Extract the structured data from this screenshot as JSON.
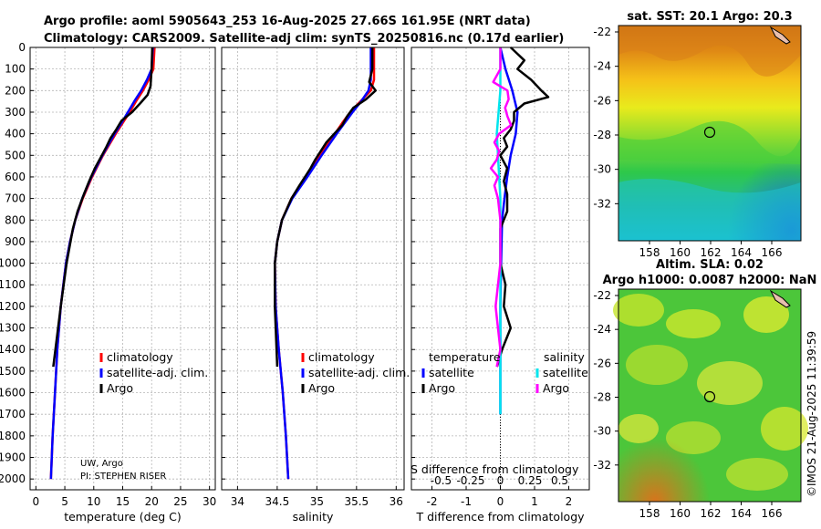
{
  "title": {
    "line1": "Argo profile: aoml 5905643_253 16-Aug-2025 27.66S 161.95E (NRT data)",
    "line2": "Climatology: CARS2009. Satellite-adj clim: synTS_20250816.nc (0.17d earlier)"
  },
  "colors": {
    "climatology": "#ff0000",
    "satellite": "#0000ff",
    "argo": "#000000",
    "sat_sal": "#00e5ee",
    "argo_sal": "#ff00ff"
  },
  "chart_data": [
    {
      "type": "line",
      "name": "temperature",
      "xlabel": "temperature (deg C)",
      "xlim": [
        -1,
        31
      ],
      "xticks": [
        0,
        5,
        10,
        15,
        20,
        25,
        30
      ],
      "xtick_labels": [
        "0",
        "5",
        "10",
        "15",
        "20",
        "25",
        "30"
      ],
      "ylim": [
        0,
        2050
      ],
      "yticks": [
        0,
        100,
        200,
        300,
        400,
        500,
        600,
        700,
        800,
        900,
        1000,
        1100,
        1200,
        1300,
        1400,
        1500,
        1600,
        1700,
        1800,
        1900,
        2000
      ],
      "ytick_labels": [
        "0",
        "100",
        "200",
        "300",
        "400",
        "500",
        "600",
        "700",
        "800",
        "900",
        "1000",
        "1100",
        "1200",
        "1300",
        "1400",
        "1500",
        "1600",
        "1700",
        "1800",
        "1900",
        "2000"
      ],
      "legend": [
        "climatology",
        "satellite-adj. clim.",
        "Argo"
      ],
      "annotation": [
        "UW, Argo",
        "PI: STEPHEN RISER"
      ],
      "series": [
        {
          "name": "climatology",
          "depth": [
            0,
            100,
            150,
            200,
            250,
            300,
            350,
            400,
            500,
            600,
            700,
            800,
            900,
            1000,
            1200,
            1400,
            1600,
            1800,
            2000
          ],
          "values": [
            20.5,
            20.3,
            19.5,
            18.5,
            17.3,
            16.2,
            15.0,
            13.8,
            11.6,
            9.7,
            8.1,
            6.8,
            5.9,
            5.2,
            4.3,
            3.7,
            3.3,
            2.9,
            2.6
          ]
        },
        {
          "name": "satellite-adj. clim.",
          "depth": [
            0,
            100,
            150,
            200,
            250,
            300,
            350,
            400,
            500,
            600,
            700,
            800,
            900,
            1000,
            1200,
            1400,
            1600,
            1800,
            2000
          ],
          "values": [
            20.2,
            20.0,
            19.2,
            18.2,
            17.0,
            15.9,
            14.8,
            13.6,
            11.5,
            9.6,
            8.0,
            6.8,
            5.9,
            5.2,
            4.3,
            3.7,
            3.3,
            2.9,
            2.6
          ]
        },
        {
          "name": "Argo",
          "depth": [
            0,
            100,
            180,
            220,
            260,
            300,
            340,
            380,
            420,
            460,
            500,
            560,
            620,
            680,
            760,
            840,
            1000,
            1200,
            1480
          ],
          "values": [
            20.1,
            20.0,
            19.8,
            19.3,
            18.0,
            16.6,
            14.8,
            13.9,
            12.9,
            12.2,
            11.4,
            10.2,
            9.2,
            8.3,
            7.2,
            6.4,
            5.3,
            4.3,
            3.0
          ]
        }
      ]
    },
    {
      "type": "line",
      "name": "salinity",
      "xlabel": "salinity",
      "xlim": [
        33.8,
        36.1
      ],
      "xticks": [
        34,
        34.5,
        35,
        35.5,
        36
      ],
      "xtick_labels": [
        "34",
        "34.5",
        "35",
        "35.5",
        "36"
      ],
      "legend": [
        "climatology",
        "satellite-adj. clim.",
        "Argo"
      ],
      "series": [
        {
          "name": "climatology",
          "depth": [
            0,
            100,
            150,
            200,
            250,
            300,
            350,
            400,
            500,
            600,
            700,
            800,
            900,
            1000,
            1200,
            1400,
            1600,
            1800,
            2000
          ],
          "values": [
            35.72,
            35.72,
            35.72,
            35.68,
            35.55,
            35.42,
            35.32,
            35.23,
            35.04,
            34.86,
            34.68,
            34.56,
            34.5,
            34.47,
            34.48,
            34.52,
            34.57,
            34.61,
            34.64
          ]
        },
        {
          "name": "satellite-adj. clim.",
          "depth": [
            0,
            100,
            150,
            200,
            250,
            300,
            350,
            400,
            500,
            600,
            700,
            800,
            900,
            1000,
            1200,
            1400,
            1600,
            1800,
            2000
          ],
          "values": [
            35.68,
            35.68,
            35.68,
            35.65,
            35.56,
            35.45,
            35.35,
            35.25,
            35.06,
            34.88,
            34.69,
            34.56,
            34.5,
            34.47,
            34.48,
            34.52,
            34.57,
            34.61,
            34.64
          ]
        },
        {
          "name": "Argo",
          "depth": [
            0,
            100,
            160,
            200,
            240,
            280,
            320,
            360,
            400,
            440,
            480,
            520,
            560,
            600,
            640,
            700,
            800,
            900,
            1000,
            1200,
            1480
          ],
          "values": [
            35.7,
            35.7,
            35.66,
            35.74,
            35.62,
            35.46,
            35.38,
            35.32,
            35.22,
            35.12,
            35.05,
            34.98,
            34.92,
            34.85,
            34.78,
            34.68,
            34.56,
            34.5,
            34.47,
            34.47,
            34.5
          ]
        }
      ]
    },
    {
      "type": "line",
      "name": "difference",
      "xlabel": "T difference from climatology",
      "xlabel_top": "S difference from climatology",
      "xlim": [
        -2.6,
        2.6
      ],
      "xticks": [
        -2,
        -1,
        0,
        1,
        2
      ],
      "xtick_labels": [
        "-2",
        "-1",
        "0",
        "1",
        "2"
      ],
      "sticks": [
        -0.5,
        -0.25,
        0,
        0.25,
        0.5
      ],
      "stick_labels": [
        "-0.5",
        "-0.25",
        "0",
        "0.25",
        "0.5"
      ],
      "legend_titles": [
        "temperature",
        "salinity"
      ],
      "legend_left": [
        "satellite",
        "Argo"
      ],
      "legend_right": [
        "satellite",
        "Argo"
      ],
      "series": [
        {
          "name": "T satellite",
          "depth": [
            0,
            100,
            200,
            300,
            400,
            500,
            600,
            700,
            800,
            1000,
            1200,
            1400,
            1600,
            1700
          ],
          "values": [
            0.0,
            0.15,
            0.35,
            0.5,
            0.45,
            0.3,
            0.2,
            0.12,
            0.05,
            0.02,
            0.0,
            0.0,
            0.0,
            0.0
          ]
        },
        {
          "name": "T Argo",
          "depth": [
            0,
            60,
            100,
            150,
            200,
            230,
            260,
            300,
            340,
            380,
            420,
            460,
            500,
            560,
            620,
            680,
            760,
            840,
            1000,
            1100,
            1200,
            1300,
            1400,
            1480
          ],
          "values": [
            0.3,
            0.7,
            0.5,
            0.9,
            1.2,
            1.4,
            0.7,
            0.4,
            0.4,
            0.3,
            0.1,
            0.2,
            0.0,
            0.2,
            0.1,
            0.2,
            0.2,
            0.0,
            0.0,
            0.15,
            0.1,
            0.3,
            0.05,
            -0.1
          ]
        },
        {
          "name": "S satellite",
          "depth": [
            0,
            100,
            200,
            400,
            600,
            700,
            900,
            1200,
            1500,
            1700
          ],
          "values": [
            0.0,
            0.0,
            0.0,
            -0.03,
            -0.01,
            0.0,
            0.0,
            0.0,
            0.0,
            0.0
          ]
        },
        {
          "name": "S Argo",
          "depth": [
            0,
            100,
            160,
            200,
            240,
            280,
            320,
            360,
            400,
            440,
            480,
            520,
            560,
            600,
            640,
            700,
            800,
            900,
            1000,
            1100,
            1200,
            1300,
            1400,
            1480
          ],
          "values": [
            0.0,
            0.0,
            -0.06,
            0.06,
            0.07,
            0.04,
            0.06,
            0.09,
            -0.01,
            -0.05,
            -0.01,
            -0.03,
            -0.08,
            -0.02,
            -0.05,
            -0.02,
            0.0,
            0.0,
            0.0,
            -0.02,
            -0.04,
            -0.02,
            0.0,
            -0.03
          ]
        }
      ]
    }
  ],
  "maps": {
    "sst_title": "sat. SST: 20.1 Argo: 20.3",
    "sla_title1": "Altim. SLA: 0.02",
    "sla_title2": "Argo h1000: 0.0087 h2000: NaN",
    "lat_labels": [
      "-22",
      "-24",
      "-26",
      "-28",
      "-30",
      "-32"
    ],
    "lon_labels": [
      "158",
      "160",
      "162",
      "164",
      "166"
    ],
    "credit": "©IMOS 21-Aug-2025 11:39:59"
  }
}
